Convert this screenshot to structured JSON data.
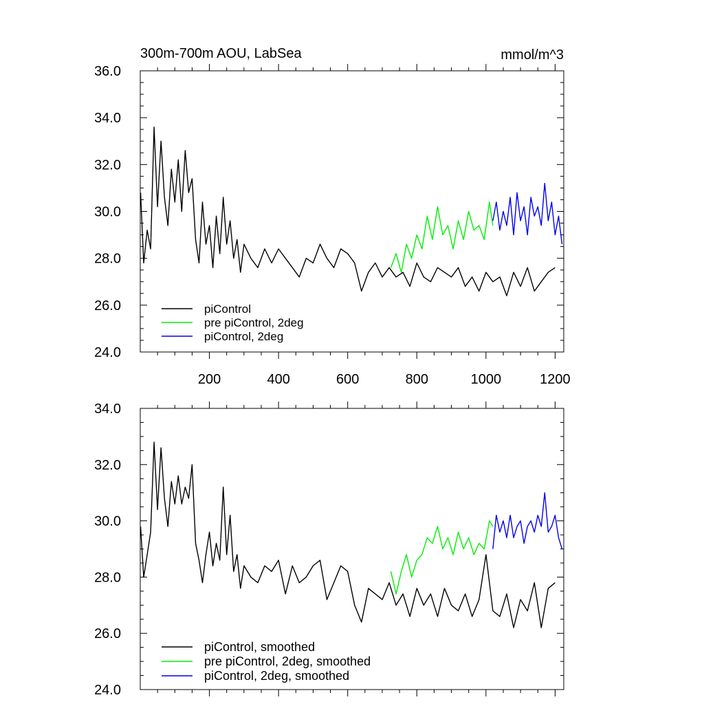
{
  "chart_data": [
    {
      "type": "line",
      "title": "300m-700m AOU, LabSea",
      "units": "mmol/m^3",
      "xlim": [
        0,
        1225
      ],
      "ylim": [
        24,
        36
      ],
      "xticks": [
        200,
        400,
        600,
        800,
        1000,
        1200
      ],
      "xtick_labels": [
        "200",
        "400",
        "600",
        "800",
        "1000",
        "1200"
      ],
      "yticks": [
        24,
        26,
        28,
        30,
        32,
        34,
        36
      ],
      "ytick_labels": [
        "24.0",
        "26.0",
        "28.0",
        "30.0",
        "32.0",
        "34.0",
        "36.0"
      ],
      "legend_position": "bottom-left",
      "legend": [
        "piControl",
        "pre piControl, 2deg",
        "piControl, 2deg"
      ],
      "series": [
        {
          "name": "piControl",
          "color": "#000000",
          "x": [
            1,
            10,
            20,
            30,
            40,
            50,
            60,
            70,
            80,
            90,
            100,
            110,
            120,
            130,
            140,
            150,
            160,
            170,
            180,
            190,
            200,
            210,
            220,
            230,
            240,
            250,
            260,
            270,
            280,
            290,
            300,
            320,
            340,
            360,
            380,
            400,
            420,
            440,
            460,
            480,
            500,
            520,
            540,
            560,
            580,
            600,
            620,
            640,
            660,
            680,
            700,
            720,
            740,
            760,
            780,
            800,
            820,
            840,
            860,
            880,
            900,
            920,
            940,
            960,
            980,
            1000,
            1020,
            1040,
            1060,
            1080,
            1100,
            1120,
            1140,
            1160,
            1180,
            1200
          ],
          "values": [
            30.8,
            27.8,
            29.2,
            28.4,
            33.6,
            30.2,
            33.0,
            30.6,
            29.4,
            31.8,
            30.4,
            32.2,
            30.0,
            32.6,
            30.8,
            31.4,
            28.8,
            27.8,
            30.4,
            28.6,
            29.4,
            27.6,
            29.8,
            28.2,
            30.6,
            28.6,
            29.6,
            28.0,
            28.8,
            27.4,
            28.6,
            28.0,
            27.6,
            28.4,
            27.8,
            28.4,
            28.0,
            27.6,
            27.2,
            28.0,
            27.8,
            28.6,
            28.0,
            27.6,
            28.4,
            28.2,
            27.8,
            26.6,
            27.4,
            27.8,
            27.2,
            27.6,
            27.2,
            27.4,
            26.8,
            27.8,
            27.2,
            27.0,
            27.6,
            27.4,
            27.2,
            27.6,
            26.8,
            27.2,
            26.6,
            27.4,
            27.0,
            27.2,
            26.4,
            27.4,
            26.8,
            27.6,
            26.6,
            27.0,
            27.4,
            27.6
          ]
        },
        {
          "name": "pre piControl, 2deg",
          "color": "#00ee00",
          "x": [
            725,
            740,
            755,
            770,
            785,
            800,
            815,
            830,
            845,
            860,
            875,
            890,
            905,
            920,
            935,
            950,
            965,
            980,
            995,
            1010,
            1020
          ],
          "values": [
            27.6,
            28.2,
            27.4,
            28.6,
            28.0,
            29.0,
            28.4,
            29.8,
            28.8,
            30.2,
            29.0,
            29.4,
            28.4,
            29.6,
            28.8,
            30.0,
            29.2,
            29.4,
            28.8,
            30.4,
            29.4
          ]
        },
        {
          "name": "piControl, 2deg",
          "color": "#0000ee",
          "x": [
            1020,
            1030,
            1040,
            1050,
            1060,
            1070,
            1080,
            1090,
            1100,
            1110,
            1120,
            1130,
            1140,
            1150,
            1160,
            1170,
            1180,
            1190,
            1200,
            1210,
            1220
          ],
          "values": [
            29.6,
            30.4,
            29.2,
            30.0,
            29.4,
            30.6,
            29.0,
            30.8,
            29.6,
            30.2,
            29.0,
            30.6,
            29.8,
            30.2,
            29.4,
            31.2,
            29.6,
            30.4,
            29.0,
            29.8,
            28.6
          ]
        }
      ]
    },
    {
      "type": "line",
      "xlim": [
        0,
        1225
      ],
      "ylim": [
        24,
        34
      ],
      "yticks": [
        24,
        26,
        28,
        30,
        32,
        34
      ],
      "ytick_labels": [
        "24.0",
        "26.0",
        "28.0",
        "30.0",
        "32.0",
        "34.0"
      ],
      "legend_position": "bottom-left",
      "legend": [
        "piControl, smoothed",
        "pre piControl, 2deg, smoothed",
        "piControl, 2deg, smoothed"
      ],
      "series": [
        {
          "name": "piControl, smoothed",
          "color": "#000000",
          "x": [
            1,
            10,
            20,
            30,
            40,
            50,
            60,
            70,
            80,
            90,
            100,
            110,
            120,
            130,
            140,
            150,
            160,
            170,
            180,
            190,
            200,
            210,
            220,
            230,
            240,
            250,
            260,
            270,
            280,
            290,
            300,
            320,
            340,
            360,
            380,
            400,
            420,
            440,
            460,
            480,
            500,
            520,
            540,
            560,
            580,
            600,
            620,
            640,
            660,
            680,
            700,
            720,
            740,
            760,
            780,
            800,
            820,
            840,
            860,
            880,
            900,
            920,
            940,
            960,
            980,
            1000,
            1020,
            1040,
            1060,
            1080,
            1100,
            1120,
            1140,
            1160,
            1180,
            1200
          ],
          "values": [
            29.8,
            28.0,
            28.8,
            29.6,
            32.8,
            30.4,
            32.6,
            30.8,
            29.8,
            31.4,
            30.6,
            31.6,
            30.6,
            31.2,
            30.8,
            32.0,
            29.2,
            28.6,
            27.8,
            28.8,
            29.6,
            28.4,
            29.2,
            28.6,
            31.2,
            28.8,
            30.2,
            28.2,
            28.8,
            27.6,
            28.4,
            28.0,
            27.8,
            28.4,
            28.2,
            28.6,
            27.4,
            28.4,
            27.8,
            28.0,
            28.4,
            28.6,
            27.2,
            27.8,
            28.4,
            28.2,
            27.0,
            26.4,
            27.6,
            27.4,
            27.2,
            27.8,
            27.0,
            27.4,
            26.6,
            27.6,
            27.0,
            27.4,
            26.6,
            27.6,
            27.0,
            26.8,
            27.4,
            26.6,
            27.2,
            28.8,
            26.8,
            26.6,
            27.4,
            26.2,
            27.2,
            26.8,
            27.8,
            26.2,
            27.6,
            27.8
          ]
        },
        {
          "name": "pre piControl, 2deg, smoothed",
          "color": "#00ee00",
          "x": [
            725,
            740,
            755,
            770,
            785,
            800,
            815,
            830,
            845,
            860,
            875,
            890,
            905,
            920,
            935,
            950,
            965,
            980,
            995,
            1010,
            1020
          ],
          "values": [
            28.2,
            27.4,
            28.2,
            28.8,
            28.0,
            28.6,
            28.8,
            29.4,
            29.2,
            29.8,
            29.0,
            29.4,
            28.8,
            29.6,
            29.0,
            29.4,
            28.8,
            29.2,
            29.0,
            30.0,
            29.8
          ]
        },
        {
          "name": "piControl, 2deg, smoothed",
          "color": "#0000ee",
          "x": [
            1020,
            1030,
            1040,
            1050,
            1060,
            1070,
            1080,
            1090,
            1100,
            1110,
            1120,
            1130,
            1140,
            1150,
            1160,
            1170,
            1180,
            1190,
            1200,
            1210,
            1220
          ],
          "values": [
            29.0,
            30.2,
            29.6,
            30.0,
            29.4,
            30.2,
            29.4,
            29.8,
            30.0,
            29.2,
            29.8,
            30.0,
            29.6,
            30.2,
            29.8,
            31.0,
            29.6,
            29.8,
            30.2,
            29.4,
            29.0
          ]
        }
      ]
    }
  ]
}
